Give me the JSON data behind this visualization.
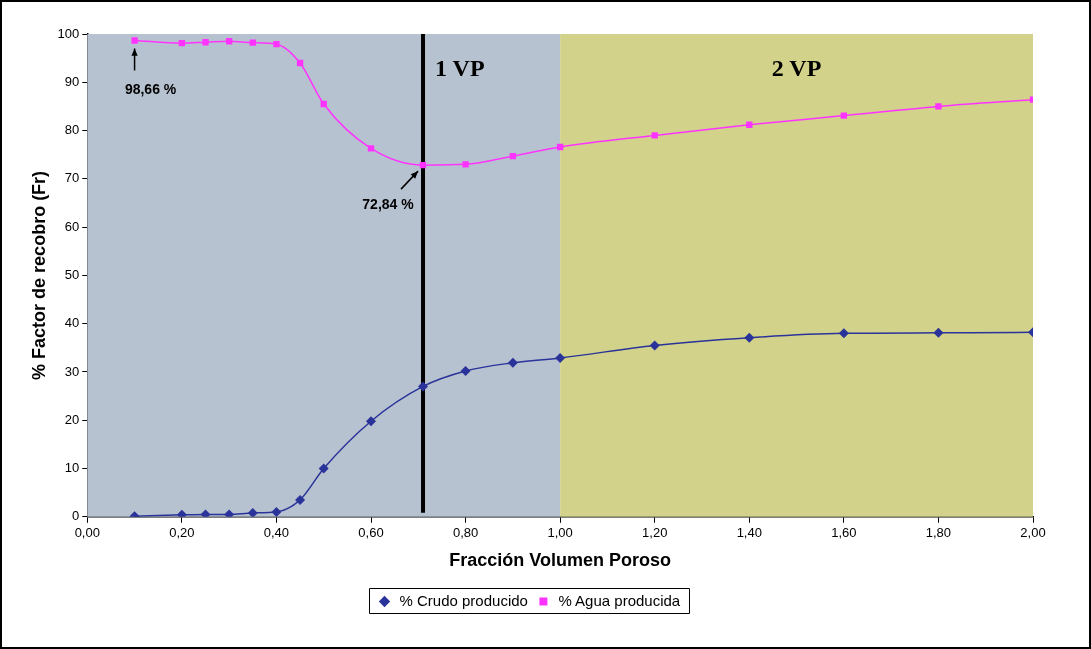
{
  "chart_data": {
    "type": "line",
    "xlabel": "Fracción Volumen Poroso",
    "ylabel": "% Factor de recobro (Fr)",
    "x": [
      0.1,
      0.2,
      0.25,
      0.3,
      0.35,
      0.4,
      0.45,
      0.5,
      0.6,
      0.71,
      0.8,
      0.9,
      1.0,
      1.2,
      1.4,
      1.6,
      1.8,
      2.0
    ],
    "series": [
      {
        "name": "% Crudo producido",
        "color": "#2a3399",
        "marker": "diamond",
        "values": [
          0.1,
          0.4,
          0.5,
          0.5,
          0.8,
          1.0,
          3.5,
          10.0,
          19.8,
          27.0,
          30.2,
          31.9,
          32.9,
          35.5,
          37.1,
          38.0,
          38.1,
          38.2
        ]
      },
      {
        "name": "% Agua producida",
        "color": "#ff33ff",
        "marker": "square",
        "values": [
          98.66,
          98.1,
          98.3,
          98.5,
          98.2,
          97.9,
          94.0,
          85.5,
          76.3,
          72.84,
          73.0,
          74.7,
          76.6,
          79.0,
          81.2,
          83.1,
          85.0,
          86.4
        ]
      }
    ],
    "xlim": [
      0,
      2
    ],
    "xticks": [
      {
        "value": 0,
        "label": "0,00"
      },
      {
        "value": 0.2,
        "label": "0,20"
      },
      {
        "value": 0.4,
        "label": "0,40"
      },
      {
        "value": 0.6,
        "label": "0,60"
      },
      {
        "value": 0.8,
        "label": "0,80"
      },
      {
        "value": 1,
        "label": "1,00"
      },
      {
        "value": 1.2,
        "label": "1,20"
      },
      {
        "value": 1.4,
        "label": "1,40"
      },
      {
        "value": 1.6,
        "label": "1,60"
      },
      {
        "value": 1.8,
        "label": "1,80"
      },
      {
        "value": 2,
        "label": "2,00"
      }
    ],
    "ylim": [
      0,
      100
    ],
    "yticks": [
      0,
      10,
      20,
      30,
      40,
      50,
      60,
      70,
      80,
      90,
      100
    ],
    "grid": false,
    "legend": "bottom",
    "bands": [
      {
        "axis": "x",
        "from": 0,
        "to": 1,
        "color": "#b7c2d0"
      },
      {
        "axis": "x",
        "from": 1,
        "to": 2,
        "color": "#d2d28a",
        "label": "2 VP"
      }
    ],
    "ref_lines": [
      {
        "axis": "x",
        "value": 0.71,
        "label": "1 VP",
        "color": "#000000"
      }
    ],
    "annotations": [
      {
        "text": "98,66 %",
        "x": 0.1,
        "y": 98.66
      },
      {
        "text": "72,84 %",
        "x": 0.71,
        "y": 72.84
      }
    ]
  }
}
